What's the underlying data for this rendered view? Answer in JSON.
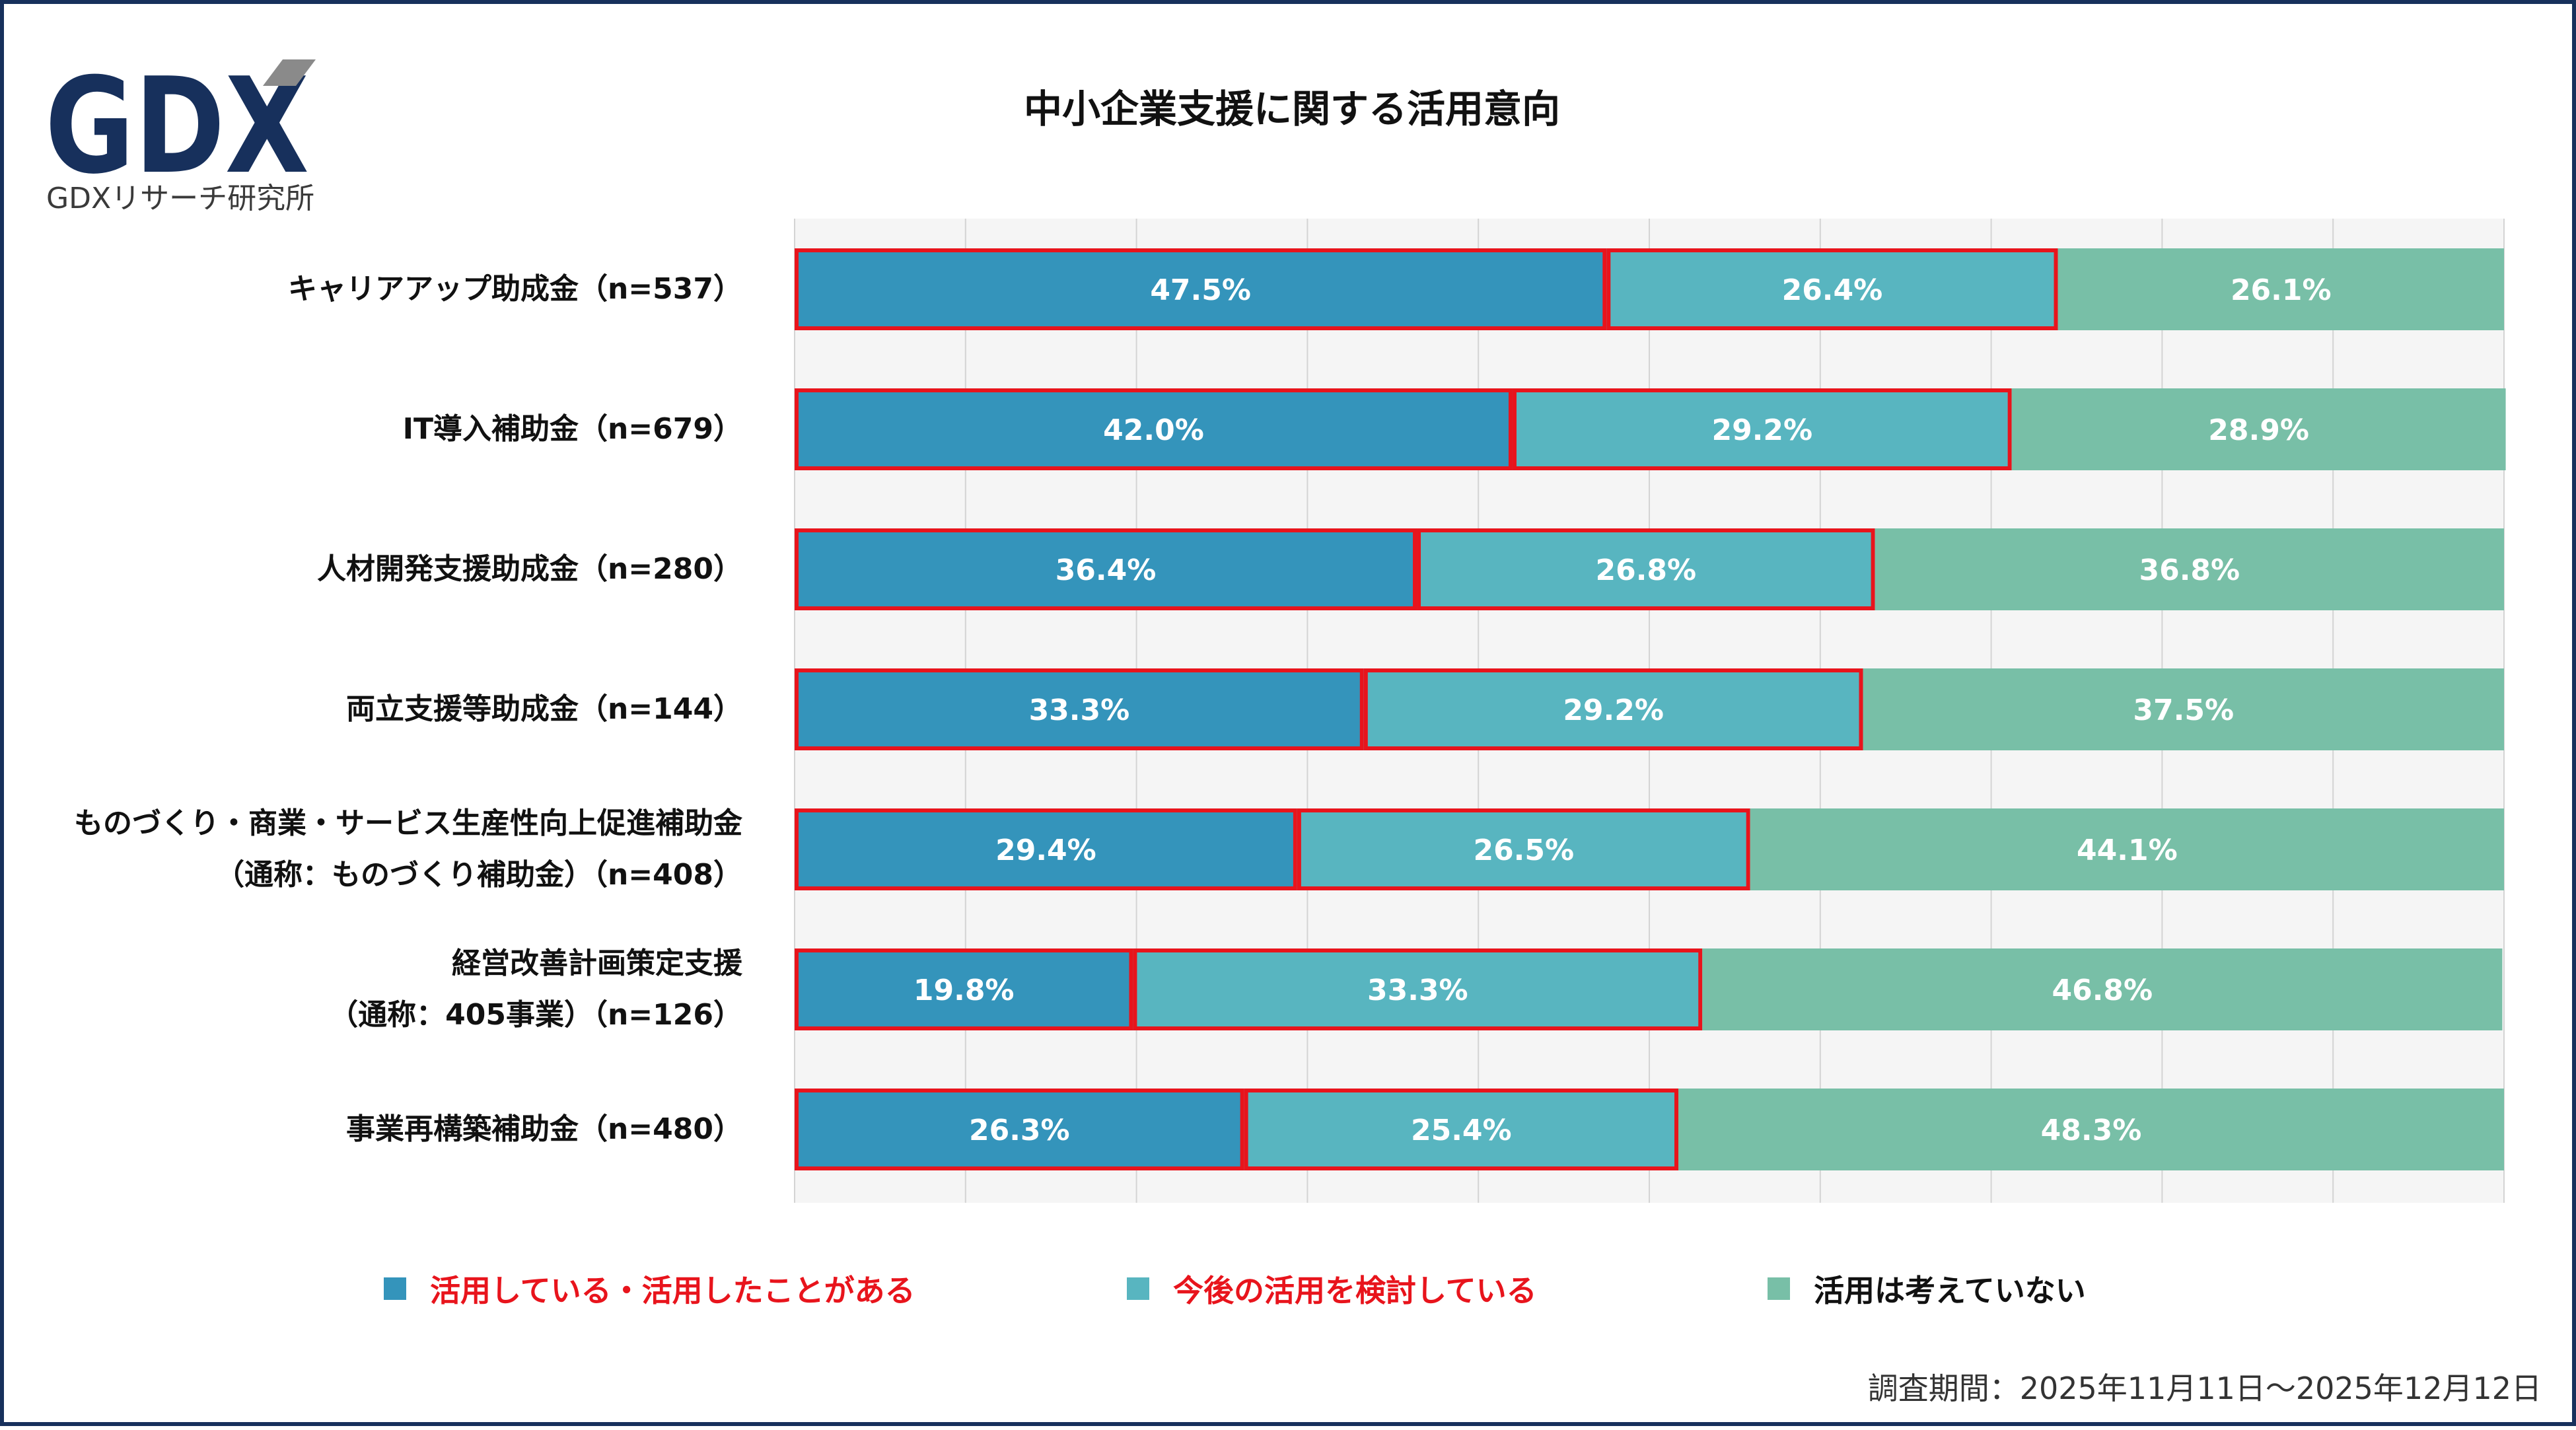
{
  "logo": {
    "text": "GDXリサーチ研究所",
    "wordmark": "GDX",
    "color": "#17305c",
    "accent": "#8a8a8a"
  },
  "chart_data": {
    "type": "bar",
    "orientation": "horizontal",
    "stacked": true,
    "title": "中小企業支援に関する活用意向",
    "xlim": [
      0,
      100
    ],
    "grid": true,
    "legend_position": "bottom",
    "categories": [
      {
        "lines": [
          "キャリアアップ助成金（n=537）"
        ]
      },
      {
        "lines": [
          "IT導入補助金（n=679）"
        ]
      },
      {
        "lines": [
          "人材開発支援助成金（n=280）"
        ]
      },
      {
        "lines": [
          "両立支援等助成金（n=144）"
        ]
      },
      {
        "lines": [
          "ものづくり・商業・サービス生産性向上促進補助金",
          "（通称：ものづくり補助金）（n=408）"
        ]
      },
      {
        "lines": [
          "経営改善計画策定支援",
          "（通称：405事業）（n=126）"
        ]
      },
      {
        "lines": [
          "事業再構築補助金（n=480）"
        ]
      }
    ],
    "series": [
      {
        "name": "活用している・活用したことがある",
        "color": "#3494bb",
        "label_color": "#e8141c",
        "outlined": true,
        "values": [
          47.5,
          42.0,
          36.4,
          33.3,
          29.4,
          19.8,
          26.3
        ],
        "labels": [
          "47.5%",
          "42.0%",
          "36.4%",
          "33.3%",
          "29.4%",
          "19.8%",
          "26.3%"
        ]
      },
      {
        "name": "今後の活用を検討している",
        "color": "#58b5c0",
        "label_color": "#e8141c",
        "outlined": true,
        "values": [
          26.4,
          29.2,
          26.8,
          29.2,
          26.5,
          33.3,
          25.4
        ],
        "labels": [
          "26.4%",
          "29.2%",
          "26.8%",
          "29.2%",
          "26.5%",
          "33.3%",
          "25.4%"
        ]
      },
      {
        "name": "活用は考えていない",
        "color": "#78bfa7",
        "label_color": "#111111",
        "outlined": false,
        "values": [
          26.1,
          28.9,
          36.8,
          37.5,
          44.1,
          46.8,
          48.3
        ],
        "labels": [
          "26.1%",
          "28.9%",
          "36.8%",
          "37.5%",
          "44.1%",
          "46.8%",
          "48.3%"
        ]
      }
    ],
    "highlight_color": "#e8141c",
    "footnote": "調査期間：2025年11月11日～2025年12月12日"
  }
}
